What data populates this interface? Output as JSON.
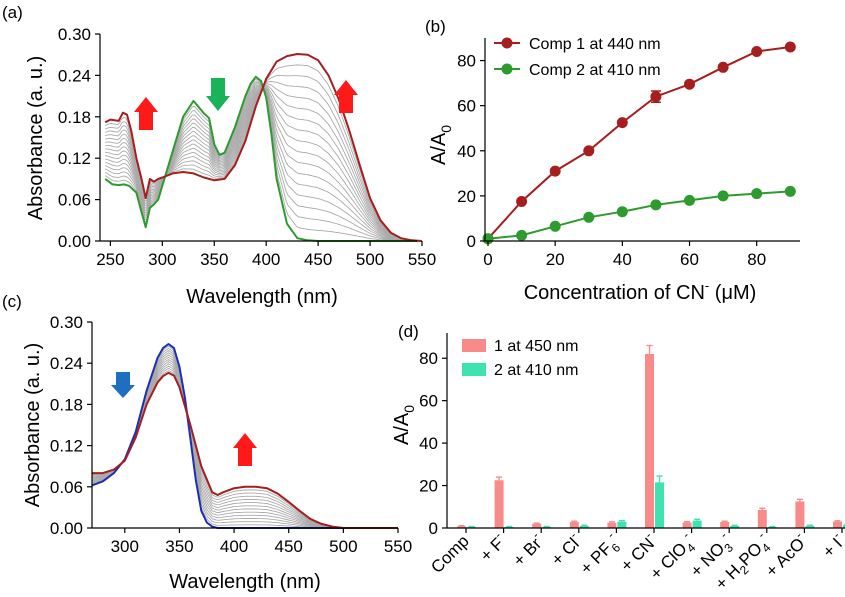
{
  "panels": {
    "a": {
      "label": "(a)",
      "xlabel": "Wavelength (nm)",
      "ylabel": "Absorbance (a. u.)",
      "xticks": [
        "250",
        "300",
        "350",
        "400",
        "450",
        "500",
        "550"
      ],
      "yticks": [
        "0.00",
        "0.06",
        "0.12",
        "0.18",
        "0.24",
        "0.30"
      ]
    },
    "b": {
      "label": "(b)",
      "xlabel_main": "Concentration of CN",
      "xlabel_sup": "-",
      "xlabel_unit": " (μM)",
      "ylabel_main": "A/A",
      "ylabel_sub": "0",
      "xticks": [
        "0",
        "20",
        "40",
        "60",
        "80"
      ],
      "yticks": [
        "0",
        "20",
        "40",
        "60",
        "80"
      ],
      "legend": [
        "Comp 1 at 440 nm",
        "Comp 2 at 410 nm"
      ]
    },
    "c": {
      "label": "(c)",
      "xlabel": "Wavelength (nm)",
      "ylabel": "Absorbance (a. u.)",
      "xticks": [
        "300",
        "350",
        "400",
        "450",
        "500",
        "550"
      ],
      "yticks": [
        "0.00",
        "0.06",
        "0.12",
        "0.18",
        "0.24",
        "0.30"
      ]
    },
    "d": {
      "label": "(d)",
      "ylabel_main": "A/A",
      "ylabel_sub": "0",
      "yticks": [
        "0",
        "20",
        "40",
        "60",
        "80"
      ],
      "legend": [
        "1 at 450 nm",
        "2 at 410 nm"
      ],
      "categories": [
        {
          "t": "Comp"
        },
        {
          "t": "+ F",
          "sup": "-"
        },
        {
          "t": "+ Br",
          "sup": "-"
        },
        {
          "t": "+ Cl",
          "sup": "-"
        },
        {
          "t": "+ PF",
          "sub": "6",
          "sup": "-"
        },
        {
          "t": "+ CN",
          "sup": "-"
        },
        {
          "t": "+ ClO",
          "sub": "4",
          "sup": "-"
        },
        {
          "t": "+ NO",
          "sub": "3",
          "sup": "-"
        },
        {
          "t": "+ H",
          "sub": "2",
          "t2": "PO",
          "sub2": "4",
          "sup": "-"
        },
        {
          "t": "+ AcO",
          "sup": "-"
        },
        {
          "t": "+ I",
          "sup": "-"
        }
      ]
    }
  },
  "colors": {
    "dark_red": "#A61E1E",
    "green": "#2E9B2E",
    "grey": "#AAAAAA",
    "blue": "#1A2FB8",
    "arrow_red": "#FF1A1A",
    "arrow_green": "#19B35A",
    "arrow_blue": "#1E6FC0",
    "bar1": "#F88A8A",
    "bar2": "#3FE3B0"
  },
  "chart_data": [
    {
      "panel": "a",
      "type": "line",
      "xlim": [
        240,
        550
      ],
      "ylim": [
        0,
        0.3
      ],
      "series": [
        {
          "name": "start",
          "x": [
            245,
            252,
            258,
            263,
            268,
            275,
            280,
            284,
            288,
            292,
            296,
            300,
            310,
            320,
            330,
            340,
            345,
            350,
            355,
            360,
            370,
            380,
            385,
            390,
            395,
            400,
            405,
            410,
            420,
            430,
            440,
            450,
            460,
            470,
            480,
            490,
            500,
            510,
            520,
            530,
            540,
            550
          ],
          "y": [
            0.09,
            0.082,
            0.081,
            0.082,
            0.08,
            0.07,
            0.042,
            0.02,
            0.048,
            0.053,
            0.06,
            0.08,
            0.13,
            0.18,
            0.203,
            0.185,
            0.178,
            0.14,
            0.125,
            0.128,
            0.165,
            0.21,
            0.228,
            0.238,
            0.232,
            0.208,
            0.155,
            0.09,
            0.025,
            0.004,
            0.001,
            0,
            0,
            0,
            0,
            0,
            0,
            0,
            0,
            0,
            0,
            0
          ]
        },
        {
          "name": "end",
          "x": [
            245,
            250,
            258,
            262,
            266,
            270,
            275,
            280,
            284,
            288,
            292,
            296,
            300,
            310,
            320,
            330,
            340,
            350,
            360,
            370,
            380,
            390,
            400,
            410,
            420,
            430,
            440,
            450,
            460,
            470,
            480,
            490,
            500,
            510,
            520,
            530,
            540,
            550
          ],
          "y": [
            0.172,
            0.176,
            0.174,
            0.186,
            0.183,
            0.16,
            0.12,
            0.09,
            0.062,
            0.09,
            0.086,
            0.09,
            0.092,
            0.098,
            0.1,
            0.098,
            0.092,
            0.088,
            0.09,
            0.11,
            0.145,
            0.195,
            0.235,
            0.26,
            0.268,
            0.271,
            0.27,
            0.262,
            0.24,
            0.205,
            0.16,
            0.11,
            0.062,
            0.03,
            0.012,
            0.004,
            0.001,
            0
          ]
        }
      ],
      "n_intermediate": 16
    },
    {
      "panel": "b",
      "type": "scatter",
      "xlim": [
        0,
        92
      ],
      "ylim": [
        0,
        90
      ],
      "series": [
        {
          "name": "Comp 1 at 440 nm",
          "x": [
            0,
            10,
            20,
            30,
            40,
            50,
            60,
            70,
            80,
            90
          ],
          "y": [
            1,
            17.5,
            31,
            40,
            52.5,
            64,
            69.5,
            77,
            84,
            86
          ]
        },
        {
          "name": "Comp 2 at 410 nm",
          "x": [
            0,
            10,
            20,
            30,
            40,
            50,
            60,
            70,
            80,
            90
          ],
          "y": [
            1,
            2.5,
            6.5,
            10.5,
            13,
            16,
            18,
            20,
            21,
            22
          ]
        }
      ]
    },
    {
      "panel": "c",
      "type": "line",
      "xlim": [
        270,
        550
      ],
      "ylim": [
        0,
        0.3
      ],
      "series": [
        {
          "name": "start",
          "x": [
            270,
            280,
            290,
            300,
            310,
            320,
            330,
            335,
            340,
            345,
            350,
            355,
            360,
            365,
            370,
            375,
            380,
            385,
            390,
            400,
            450,
            500,
            550
          ],
          "y": [
            0.062,
            0.068,
            0.08,
            0.1,
            0.14,
            0.2,
            0.248,
            0.262,
            0.268,
            0.262,
            0.235,
            0.19,
            0.13,
            0.07,
            0.025,
            0.008,
            0.002,
            0,
            0,
            0,
            0,
            0,
            0
          ]
        },
        {
          "name": "end",
          "x": [
            270,
            280,
            290,
            300,
            310,
            320,
            330,
            335,
            340,
            345,
            350,
            360,
            370,
            380,
            385,
            390,
            400,
            410,
            420,
            430,
            440,
            450,
            460,
            470,
            480,
            490,
            500,
            520,
            550
          ],
          "y": [
            0.08,
            0.08,
            0.085,
            0.098,
            0.132,
            0.18,
            0.212,
            0.221,
            0.226,
            0.222,
            0.205,
            0.15,
            0.09,
            0.052,
            0.048,
            0.052,
            0.058,
            0.06,
            0.06,
            0.058,
            0.05,
            0.038,
            0.025,
            0.013,
            0.006,
            0.002,
            0,
            0,
            0
          ]
        }
      ],
      "n_intermediate": 12
    },
    {
      "panel": "d",
      "type": "bar",
      "ylim": [
        0,
        90
      ],
      "series": [
        {
          "name": "1 at 450 nm",
          "values": [
            0.8,
            22.5,
            2,
            2.8,
            2.5,
            82,
            2.6,
            2.8,
            8.5,
            12.5,
            3
          ]
        },
        {
          "name": "2 at 410 nm",
          "values": [
            0.5,
            0.5,
            0.5,
            1,
            3,
            21.5,
            3.5,
            1,
            0.5,
            1,
            1.5
          ]
        }
      ],
      "errors1": [
        0.3,
        1.5,
        0.3,
        0.4,
        0.4,
        4,
        0.4,
        0.4,
        0.8,
        1,
        0.4
      ],
      "errors2": [
        0.2,
        0.2,
        0.2,
        0.3,
        0.5,
        3,
        0.6,
        0.3,
        0.2,
        0.3,
        0.3
      ]
    }
  ]
}
